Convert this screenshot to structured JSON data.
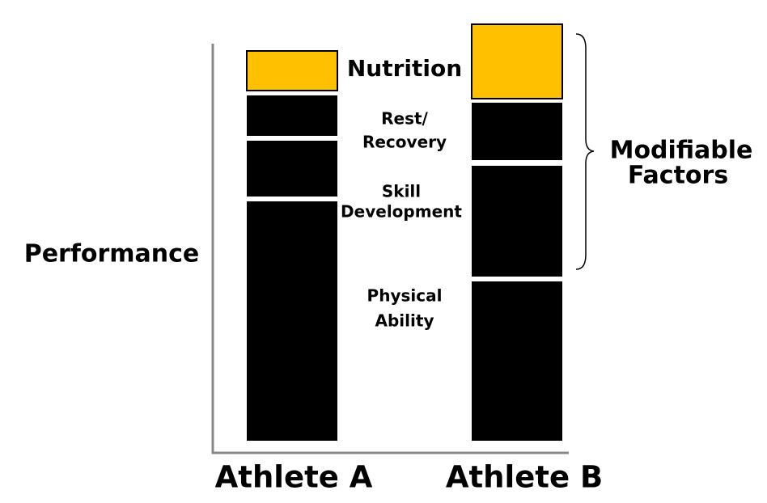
{
  "y_label": "Performance",
  "factors": [
    {
      "lines": [
        "Nutrition"
      ]
    },
    {
      "lines": [
        "Rest/",
        "Recovery"
      ]
    },
    {
      "lines": [
        "Skill",
        "Development"
      ]
    },
    {
      "lines": [
        "Physical",
        "Ability"
      ]
    }
  ],
  "group_label": [
    "Modifiable",
    "Factors"
  ],
  "athletes": [
    "Athlete A",
    "Athlete B"
  ]
}
